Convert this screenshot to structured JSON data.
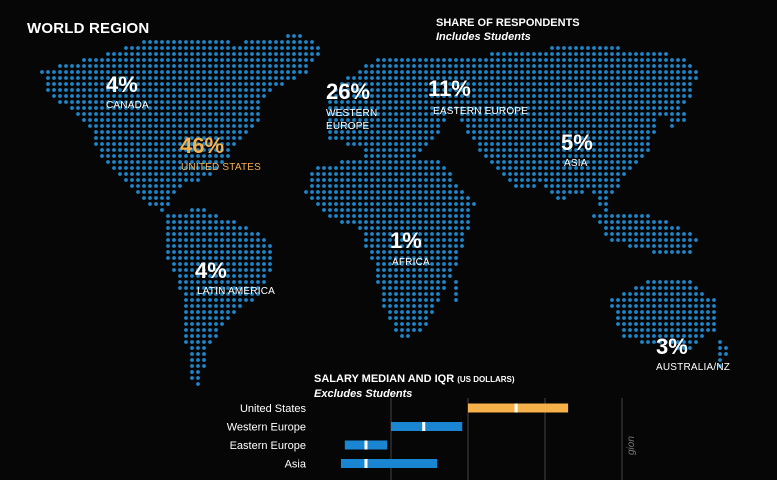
{
  "header": {
    "title": "WORLD REGION",
    "share_title": "SHARE OF RESPONDENTS",
    "share_subtitle": "Includes Students"
  },
  "colors": {
    "dot": "#1e86c8",
    "highlight": "#f6b04a",
    "bar": "#1a86d1",
    "median": "#ffffff",
    "grid": "#444444"
  },
  "chart_data": [
    {
      "type": "map",
      "title": "WORLD REGION",
      "subtitle": "SHARE OF RESPONDENTS",
      "note": "Includes Students",
      "regions": [
        {
          "name": "CANADA",
          "value": 4,
          "display": "4%"
        },
        {
          "name": "UNITED STATES",
          "value": 46,
          "display": "46%",
          "highlight": true
        },
        {
          "name": "WESTERN EUROPE",
          "value": 26,
          "display": "26%"
        },
        {
          "name": "EASTERN EUROPE",
          "value": 11,
          "display": "11%"
        },
        {
          "name": "ASIA",
          "value": 5,
          "display": "5%"
        },
        {
          "name": "AFRICA",
          "value": 1,
          "display": "1%"
        },
        {
          "name": "LATIN AMERICA",
          "value": 4,
          "display": "4%"
        },
        {
          "name": "AUSTRALIA/NZ",
          "value": 3,
          "display": "3%"
        }
      ]
    },
    {
      "type": "bar",
      "title": "SALARY MEDIAN AND IQR",
      "units": "(US DOLLARS)",
      "note": "Excludes Students",
      "categories": [
        "United States",
        "Western Europe",
        "Eastern Europe",
        "Asia"
      ],
      "q1": [
        80000,
        40000,
        16000,
        14000
      ],
      "median": [
        105000,
        57000,
        27000,
        27000
      ],
      "q3": [
        132000,
        77000,
        38000,
        64000
      ],
      "highlight": "United States",
      "xlim": [
        0,
        160000
      ]
    }
  ],
  "labels": {
    "canada": {
      "pct": "4%",
      "name": "CANADA"
    },
    "us": {
      "pct": "46%",
      "name": "UNITED STATES"
    },
    "weur": {
      "pct": "26%",
      "name1": "WESTERN",
      "name2": "EUROPE"
    },
    "eeur": {
      "pct": "11%",
      "name": "EASTERN EUROPE"
    },
    "asia": {
      "pct": "5%",
      "name": "ASIA"
    },
    "africa": {
      "pct": "1%",
      "name": "AFRICA"
    },
    "latam": {
      "pct": "4%",
      "name": "LATIN AMERICA"
    },
    "aus": {
      "pct": "3%",
      "name": "AUSTRALIA/NZ"
    }
  },
  "salary": {
    "title": "SALARY MEDIAN AND IQR",
    "units": "(US DOLLARS)",
    "subtitle": "Excludes Students"
  },
  "side_text": "gion"
}
